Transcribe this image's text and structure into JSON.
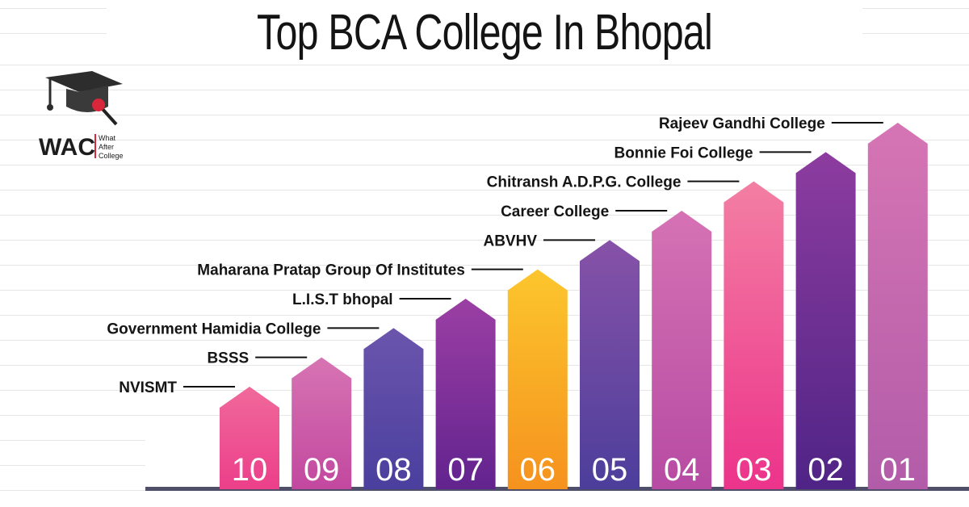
{
  "title": "Top BCA College In Bhopal",
  "logo": {
    "mark": "WAC",
    "line1": "What",
    "line2": "After",
    "line3": "College"
  },
  "chart_data": {
    "type": "bar",
    "title": "Top BCA College In Bhopal",
    "xlabel": "",
    "ylabel": "",
    "categories": [
      "10",
      "09",
      "08",
      "07",
      "06",
      "05",
      "04",
      "03",
      "02",
      "01"
    ],
    "labels": [
      "NVISMT",
      "BSSS",
      "Government Hamidia College",
      "L.I.S.T bhopal",
      "Maharana Pratap Group Of Institutes",
      "ABVHV",
      "Career College",
      "Chitransh A.D.P.G. College",
      "Bonnie Foi College",
      "Rajeev Gandhi College"
    ],
    "values": [
      1,
      2,
      3,
      4,
      5,
      6,
      7,
      8,
      9,
      10
    ],
    "ylim": [
      0,
      10
    ],
    "grid": true,
    "colors": [
      [
        "#f0699b",
        "#ec3f8a"
      ],
      [
        "#d774b3",
        "#c2489f"
      ],
      [
        "#6b55ad",
        "#4a3f9e"
      ],
      [
        "#9b3fa4",
        "#62238e"
      ],
      [
        "#fcc62d",
        "#f5921e"
      ],
      [
        "#8752a8",
        "#4c3e9b"
      ],
      [
        "#d572b4",
        "#b74ba3"
      ],
      [
        "#f37fa3",
        "#ec338b"
      ],
      [
        "#8d3c9f",
        "#4f2486"
      ],
      [
        "#d675b4",
        "#b25ca9"
      ]
    ]
  }
}
